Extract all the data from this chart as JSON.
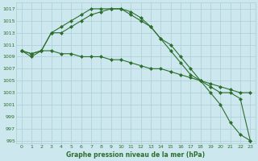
{
  "x": [
    0,
    1,
    2,
    3,
    4,
    5,
    6,
    7,
    8,
    9,
    10,
    11,
    12,
    13,
    14,
    15,
    16,
    17,
    18,
    19,
    20,
    21,
    22,
    23
  ],
  "line1": [
    1010,
    1009,
    1010,
    1013,
    1014,
    1015,
    1016,
    1017,
    1017,
    1017,
    1017,
    1016,
    1015,
    1014,
    1012,
    1011,
    1009,
    1007,
    1005,
    1003,
    1001,
    998,
    996,
    995
  ],
  "line2": [
    1010,
    1009.5,
    1010,
    1013,
    1013,
    1014,
    1015,
    1016,
    1016.5,
    1017,
    1017,
    1016.5,
    1015.5,
    1014,
    1012,
    1010,
    1008,
    1006,
    1005,
    1004,
    1003,
    1003,
    1002,
    995
  ],
  "line3": [
    1010,
    1009.5,
    1010,
    1010,
    1009.5,
    1009.5,
    1009,
    1009,
    1009,
    1008.5,
    1008.5,
    1008,
    1007.5,
    1007,
    1007,
    1006.5,
    1006,
    1005.5,
    1005,
    1004.5,
    1004,
    1003.5,
    1003,
    1003
  ],
  "bg_color": "#cce8ee",
  "grid_color": "#aacdd4",
  "line_color": "#2d6e2d",
  "title": "Graphe pression niveau de la mer (hPa)",
  "ylim": [
    994.5,
    1018
  ],
  "yticks": [
    995,
    997,
    999,
    1001,
    1003,
    1005,
    1007,
    1009,
    1011,
    1013,
    1015,
    1017
  ],
  "xlim": [
    -0.5,
    23.5
  ],
  "xticks": [
    0,
    1,
    2,
    3,
    4,
    5,
    6,
    7,
    8,
    9,
    10,
    11,
    12,
    13,
    14,
    15,
    16,
    17,
    18,
    19,
    20,
    21,
    22,
    23
  ]
}
